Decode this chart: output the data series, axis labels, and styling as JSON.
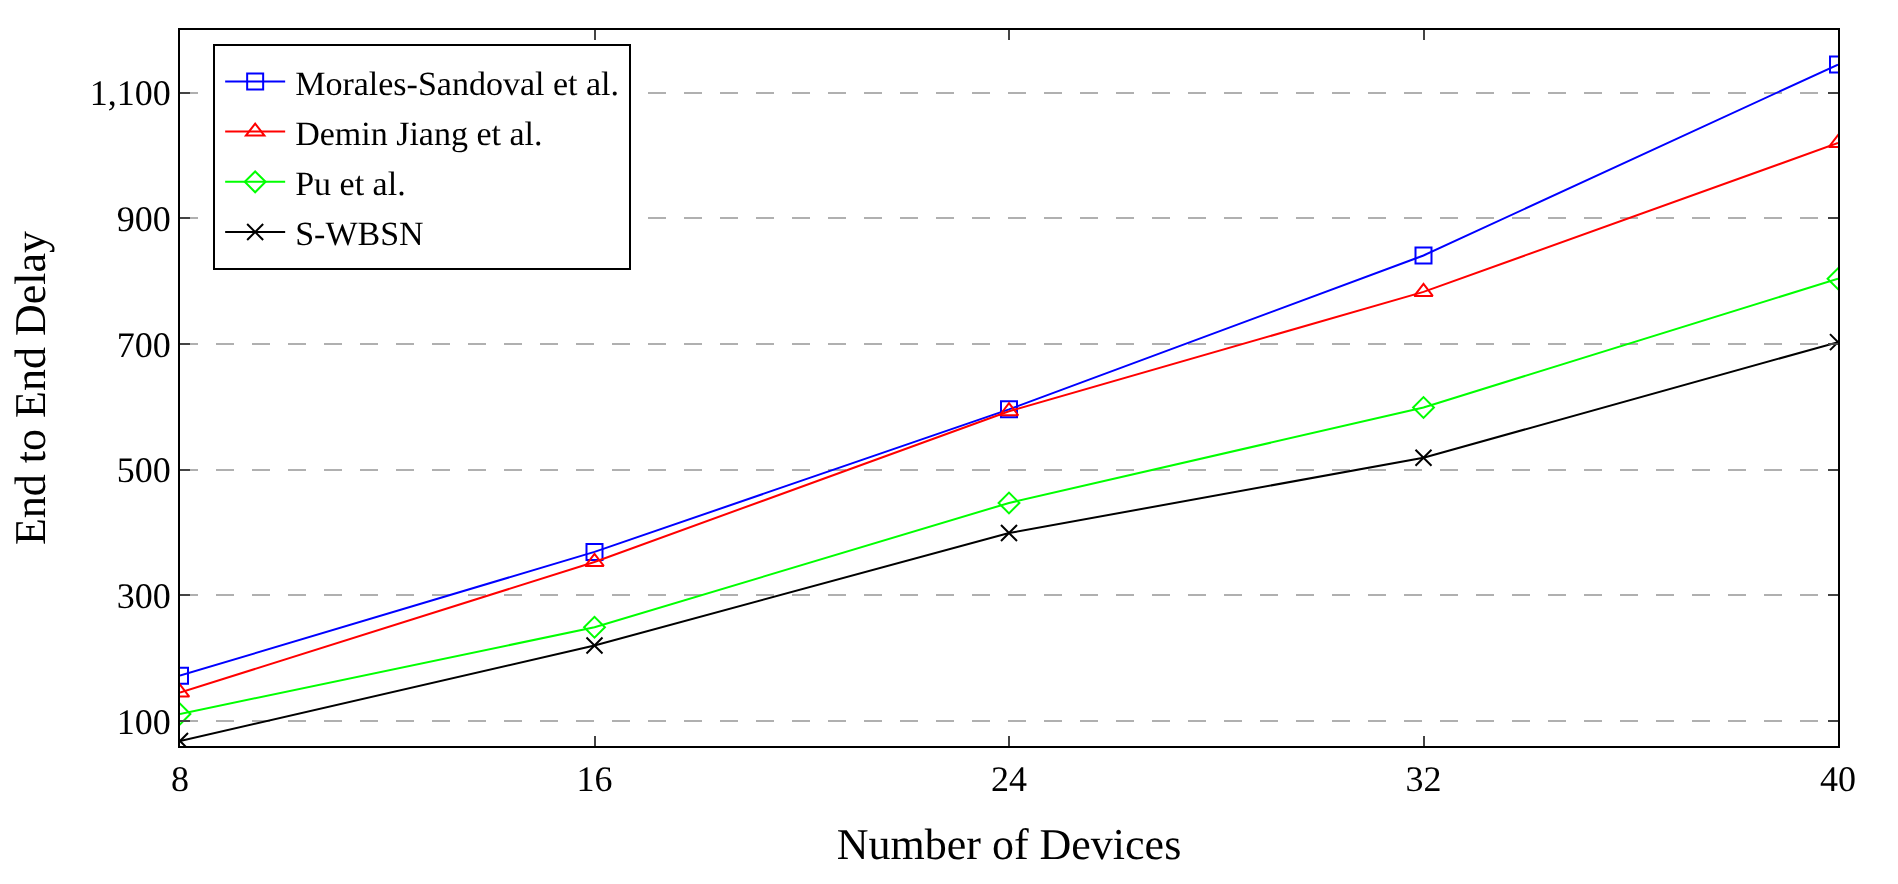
{
  "chart_data": {
    "type": "line",
    "xlabel": "Number of Devices",
    "ylabel": "End to End Delay",
    "x": [
      8,
      16,
      24,
      32,
      40
    ],
    "series": [
      {
        "name": "Morales-Sandoval et al.",
        "color": "#0000ff",
        "marker": "square",
        "values": [
          172,
          369,
          596,
          841,
          1145
        ]
      },
      {
        "name": "Demin Jiang et al.",
        "color": "#ff0000",
        "marker": "triangle",
        "values": [
          145,
          353,
          593,
          783,
          1020
        ]
      },
      {
        "name": "Pu et al.",
        "color": "#00ff00",
        "marker": "diamond",
        "values": [
          111,
          249,
          447,
          599,
          804
        ]
      },
      {
        "name": "S-WBSN",
        "color": "#000000",
        "marker": "cross",
        "values": [
          68,
          220,
          399,
          519,
          703
        ]
      }
    ],
    "xlim": [
      8,
      40
    ],
    "xticks": [
      8,
      16,
      24,
      32,
      40
    ],
    "ylim": [
      60,
      1200
    ],
    "yticks": [
      {
        "value": 100,
        "label": "100"
      },
      {
        "value": 300,
        "label": "300"
      },
      {
        "value": 500,
        "label": "500"
      },
      {
        "value": 700,
        "label": "700"
      },
      {
        "value": 900,
        "label": "900"
      },
      {
        "value": 1100,
        "label": "1,100"
      }
    ],
    "grid": "y",
    "legend": "top left"
  }
}
